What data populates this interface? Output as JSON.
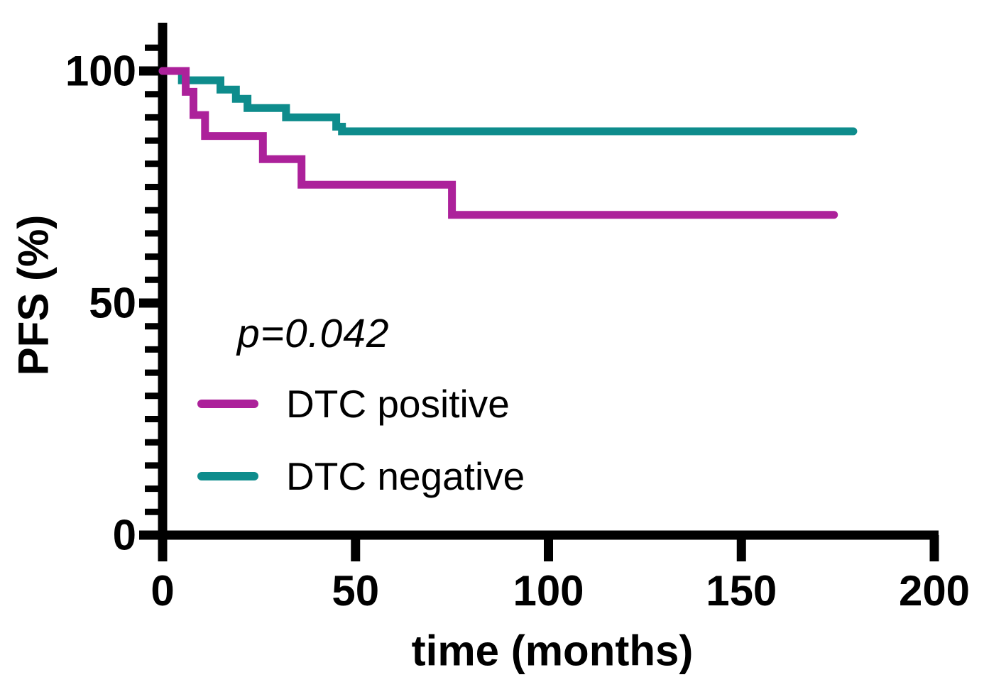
{
  "figure": {
    "background": "#ffffff",
    "axis_color": "#000000",
    "text_color": "#000000"
  },
  "chart_data": {
    "type": "line",
    "subtype": "kaplan-meier-step",
    "title": "",
    "xlabel": "time (months)",
    "ylabel": "PFS (%)",
    "annotation": "p=0.042",
    "xlim": [
      0,
      200
    ],
    "ylim": [
      0,
      110
    ],
    "x_ticks": [
      0,
      50,
      100,
      150,
      200
    ],
    "y_ticks": [
      0,
      50,
      100
    ],
    "y_minor_step": 5,
    "y_minor_max": 105,
    "grid": false,
    "legend_position": "inside lower-left",
    "series": [
      {
        "name": "DTC positive",
        "color": "#AC219A",
        "steps": [
          [
            0,
            100
          ],
          [
            6,
            100
          ],
          [
            6,
            95.5
          ],
          [
            8,
            95.5
          ],
          [
            8,
            90.5
          ],
          [
            11,
            90.5
          ],
          [
            11,
            86
          ],
          [
            26,
            86
          ],
          [
            26,
            81
          ],
          [
            36,
            81
          ],
          [
            36,
            75.5
          ],
          [
            75,
            75.5
          ],
          [
            75,
            69
          ],
          [
            174,
            69
          ]
        ]
      },
      {
        "name": "DTC negative",
        "color": "#0E8C8C",
        "steps": [
          [
            0,
            100
          ],
          [
            5,
            100
          ],
          [
            5,
            98
          ],
          [
            15,
            98
          ],
          [
            15,
            96
          ],
          [
            19,
            96
          ],
          [
            19,
            94
          ],
          [
            22,
            94
          ],
          [
            22,
            92
          ],
          [
            32,
            92
          ],
          [
            32,
            90
          ],
          [
            45,
            90
          ],
          [
            45,
            88
          ],
          [
            46.5,
            88
          ],
          [
            46.5,
            87
          ],
          [
            179,
            87
          ]
        ]
      }
    ]
  }
}
